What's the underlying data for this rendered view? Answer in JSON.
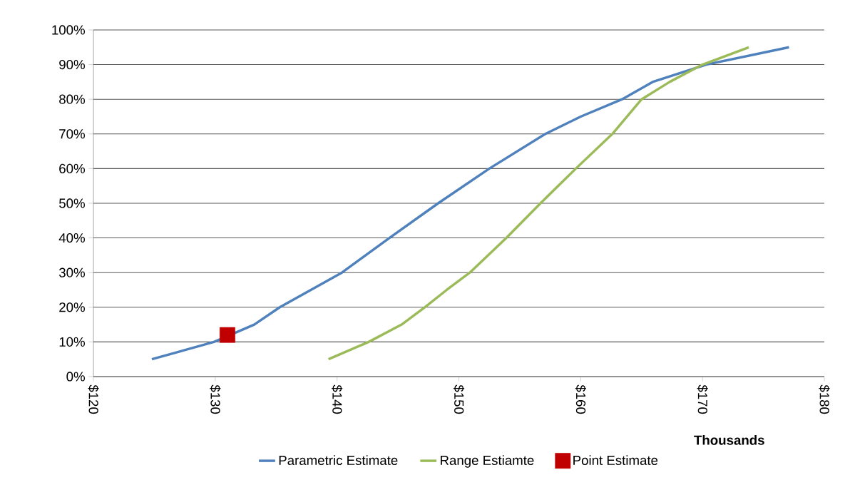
{
  "chart_data": {
    "type": "line",
    "xlabel": "Thousands",
    "xlim": [
      120,
      180
    ],
    "ylim": [
      0,
      100
    ],
    "xticks": [
      {
        "value": 120,
        "label": "$120"
      },
      {
        "value": 130,
        "label": "$130"
      },
      {
        "value": 140,
        "label": "$140"
      },
      {
        "value": 150,
        "label": "$150"
      },
      {
        "value": 160,
        "label": "$160"
      },
      {
        "value": 170,
        "label": "$170"
      },
      {
        "value": 180,
        "label": "$180"
      }
    ],
    "yticks": [
      {
        "value": 0,
        "label": "0%"
      },
      {
        "value": 10,
        "label": "10%"
      },
      {
        "value": 20,
        "label": "20%"
      },
      {
        "value": 30,
        "label": "30%"
      },
      {
        "value": 40,
        "label": "40%"
      },
      {
        "value": 50,
        "label": "50%"
      },
      {
        "value": 60,
        "label": "60%"
      },
      {
        "value": 70,
        "label": "70%"
      },
      {
        "value": 80,
        "label": "80%"
      },
      {
        "value": 90,
        "label": "90%"
      },
      {
        "value": 100,
        "label": "100%"
      }
    ],
    "grid": "y",
    "legend": "bottom",
    "line_style": "solid",
    "series": [
      {
        "name": "Parametric Estimate",
        "color": "#4f81bd",
        "marker": "none",
        "x": [
          124.8,
          129.9,
          133.2,
          135.3,
          140.4,
          144.3,
          148.3,
          152.5,
          157.1,
          160,
          163.4,
          165.9,
          170.3,
          177.1
        ],
        "values": [
          5,
          10,
          15,
          20,
          30,
          40,
          50,
          60,
          70,
          75,
          80,
          85,
          90,
          95
        ]
      },
      {
        "name": "Range Estiamte",
        "color": "#9bbb59",
        "marker": "none",
        "x": [
          139.3,
          142.6,
          145.3,
          147.2,
          149,
          150.9,
          153.9,
          156.7,
          159.6,
          162.6,
          165,
          167.3,
          170,
          173.8
        ],
        "values": [
          5,
          10,
          15,
          20,
          25,
          30,
          40,
          50,
          60,
          70,
          80,
          85,
          90,
          95
        ]
      },
      {
        "name": "Point Estimate",
        "type": "scatter",
        "color": "#c00000",
        "marker": "square",
        "x": [
          131
        ],
        "values": [
          12
        ]
      }
    ]
  }
}
